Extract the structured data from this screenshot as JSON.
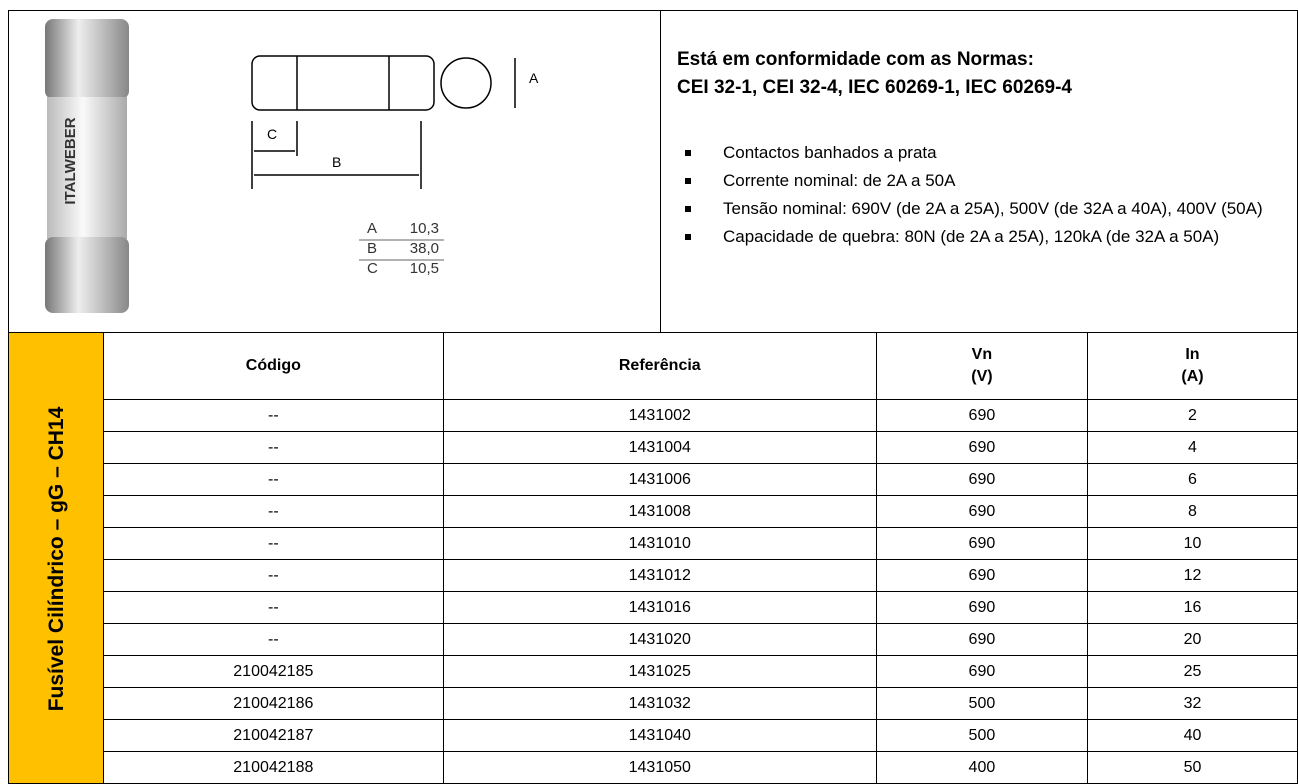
{
  "photo_label": "ITALWEBER",
  "diagram": {
    "labels": [
      "A",
      "B",
      "C"
    ],
    "dimensions": [
      [
        "A",
        "10,3"
      ],
      [
        "B",
        "38,0"
      ],
      [
        "C",
        "10,5"
      ]
    ]
  },
  "standards": {
    "heading": "Está em conformidade com as Normas:",
    "list": "CEI 32-1, CEI 32-4, IEC 60269-1, IEC 60269-4"
  },
  "features": [
    "Contactos banhados a prata",
    "Corrente nominal: de 2A a 50A",
    "Tensão nominal: 690V (de 2A a 25A), 500V (de 32A a 40A), 400V (50A)",
    "Capacidade de quebra: 80N (de 2A a 25A), 120kA (de 32A a 50A)"
  ],
  "side_label": "Fusível Cilíndrico – gG – CH14",
  "table": {
    "headers": [
      [
        "Código"
      ],
      [
        "Referência"
      ],
      [
        "Vn",
        "(V)"
      ],
      [
        "In",
        "(A)"
      ]
    ],
    "rows": [
      [
        "--",
        "1431002",
        "690",
        "2"
      ],
      [
        "--",
        "1431004",
        "690",
        "4"
      ],
      [
        "--",
        "1431006",
        "690",
        "6"
      ],
      [
        "--",
        "1431008",
        "690",
        "8"
      ],
      [
        "--",
        "1431010",
        "690",
        "10"
      ],
      [
        "--",
        "1431012",
        "690",
        "12"
      ],
      [
        "--",
        "1431016",
        "690",
        "16"
      ],
      [
        "--",
        "1431020",
        "690",
        "20"
      ],
      [
        "210042185",
        "1431025",
        "690",
        "25"
      ],
      [
        "210042186",
        "1431032",
        "500",
        "32"
      ],
      [
        "210042187",
        "1431040",
        "500",
        "40"
      ],
      [
        "210042188",
        "1431050",
        "400",
        "50"
      ]
    ]
  }
}
